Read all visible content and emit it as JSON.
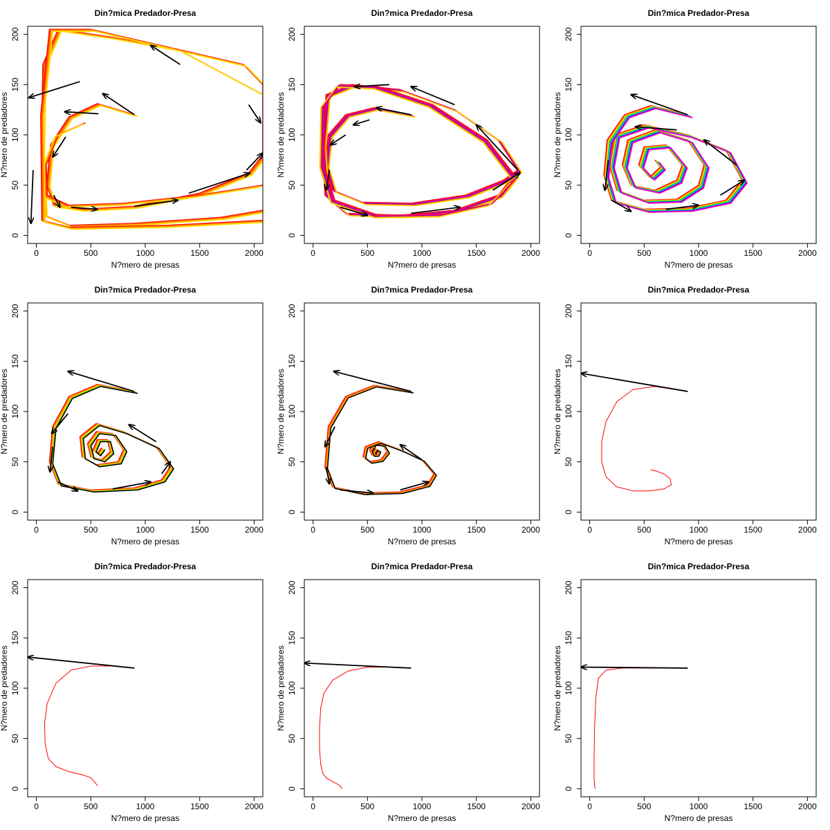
{
  "chart_data": [
    {
      "type": "line",
      "title": "Din?mica Predador-Presa",
      "xlabel": "N?mero de presas",
      "ylabel": "N?mero de predadores",
      "xlim": [
        -80,
        2080
      ],
      "ylim": [
        -8,
        208
      ],
      "xticks": [
        "0",
        "500",
        "1000",
        "1500",
        "2000"
      ],
      "yticks": [
        "0",
        "50",
        "100",
        "150",
        "200"
      ],
      "colors": [
        "#ff0000",
        "#ff4400",
        "#ff7700",
        "#ffaa00",
        "#ffdd00"
      ],
      "series": [
        {
          "x": [
            900,
            560,
            300,
            130,
            95,
            160,
            420,
            900,
            1500,
            1950,
            2080,
            2080,
            1900,
            1300,
            700,
            200,
            60,
            45,
            70,
            300,
            900,
            1700,
            2080
          ],
          "y": [
            120,
            131,
            118,
            90,
            50,
            30,
            26,
            29,
            42,
            62,
            80,
            150,
            170,
            185,
            197,
            205,
            170,
            80,
            20,
            10,
            12,
            18,
            25
          ]
        },
        {
          "x": [
            450,
            200,
            90,
            100,
            300,
            800,
            1500,
            2080
          ],
          "y": [
            112,
            100,
            70,
            40,
            30,
            32,
            40,
            50
          ]
        },
        {
          "x": [
            2080,
            1300,
            500,
            120,
            40,
            50,
            300,
            1200,
            2080
          ],
          "y": [
            140,
            185,
            205,
            205,
            120,
            15,
            8,
            10,
            15
          ]
        }
      ]
    },
    {
      "type": "line",
      "title": "Din?mica Predador-Presa",
      "xlabel": "N?mero de presas",
      "ylabel": "N?mero de predadores",
      "xlim": [
        -80,
        2080
      ],
      "ylim": [
        -8,
        208
      ],
      "xticks": [
        "0",
        "500",
        "1000",
        "1500",
        "2000"
      ],
      "yticks": [
        "0",
        "50",
        "100",
        "150",
        "200"
      ],
      "colors": [
        "#ff0000",
        "#ff0055",
        "#cc00aa",
        "#8800cc",
        "#ff7700",
        "#ffcc00"
      ],
      "series": [
        {
          "x": [
            900,
            560,
            300,
            140,
            110,
            180,
            450,
            900,
            1400,
            1750,
            1880,
            1700,
            1300,
            800,
            350,
            120,
            80,
            110,
            300,
            800,
            1300,
            1700,
            1850
          ],
          "y": [
            120,
            127,
            120,
            100,
            70,
            45,
            33,
            32,
            40,
            55,
            65,
            95,
            125,
            145,
            150,
            140,
            90,
            40,
            22,
            20,
            25,
            40,
            60
          ]
        },
        {
          "x": [
            1850,
            1600,
            1100,
            600,
            250,
            110,
            100,
            200,
            600,
            1200,
            1650,
            1850
          ],
          "y": [
            60,
            95,
            130,
            148,
            150,
            130,
            70,
            35,
            20,
            21,
            32,
            55
          ]
        }
      ]
    },
    {
      "type": "line",
      "title": "Din?mica Predador-Presa",
      "xlabel": "N?mero de presas",
      "ylabel": "N?mero de predadores",
      "xlim": [
        -80,
        2080
      ],
      "ylim": [
        -8,
        208
      ],
      "xticks": [
        "0",
        "500",
        "1000",
        "1500",
        "2000"
      ],
      "yticks": [
        "0",
        "50",
        "100",
        "150",
        "200"
      ],
      "colors": [
        "#ff0000",
        "#ff7700",
        "#ffee00",
        "#00cc00",
        "#00ccff",
        "#6600ff",
        "#ff00aa"
      ],
      "series": [
        {
          "x": [
            900,
            560,
            320,
            160,
            130,
            200,
            500,
            900,
            1250,
            1400,
            1250,
            900,
            500,
            230,
            180,
            250,
            500,
            800,
            1000,
            1050,
            900,
            600,
            350,
            300,
            380,
            600,
            800,
            850,
            700,
            500,
            450,
            550,
            650,
            600
          ],
          "y": [
            120,
            129,
            120,
            95,
            60,
            35,
            26,
            27,
            35,
            55,
            85,
            100,
            110,
            100,
            70,
            45,
            35,
            36,
            50,
            70,
            95,
            105,
            95,
            70,
            50,
            45,
            55,
            70,
            90,
            88,
            70,
            58,
            68,
            75
          ]
        }
      ]
    },
    {
      "type": "line",
      "title": "Din?mica Predador-Presa",
      "xlabel": "N?mero de presas",
      "ylabel": "N?mero de predadores",
      "xlim": [
        -80,
        2080
      ],
      "ylim": [
        -8,
        208
      ],
      "xticks": [
        "0",
        "500",
        "1000",
        "1500",
        "2000"
      ],
      "yticks": [
        "0",
        "50",
        "100",
        "150",
        "200"
      ],
      "colors": [
        "#ff0000",
        "#ff7700",
        "#ffcc00",
        "#88dd00",
        "#000000"
      ],
      "series": [
        {
          "x": [
            900,
            560,
            300,
            150,
            120,
            200,
            500,
            900,
            1150,
            1230,
            1100,
            800,
            550,
            400,
            420,
            550,
            750,
            800,
            700,
            550,
            470,
            500,
            600,
            680,
            650,
            560,
            520,
            560,
            600
          ],
          "y": [
            120,
            127,
            115,
            85,
            50,
            28,
            22,
            24,
            32,
            45,
            65,
            80,
            88,
            75,
            55,
            47,
            50,
            62,
            78,
            80,
            68,
            55,
            52,
            60,
            72,
            72,
            62,
            58,
            64
          ]
        }
      ]
    },
    {
      "type": "line",
      "title": "Din?mica Predador-Presa",
      "xlabel": "N?mero de presas",
      "ylabel": "N?mero de predadores",
      "xlim": [
        -80,
        2080
      ],
      "ylim": [
        -8,
        208
      ],
      "xticks": [
        "0",
        "500",
        "1000",
        "1500",
        "2000"
      ],
      "yticks": [
        "0",
        "50",
        "100",
        "150",
        "200"
      ],
      "colors": [
        "#ff0000",
        "#ff7700",
        "#ffaa00",
        "#000000"
      ],
      "series": [
        {
          "x": [
            900,
            560,
            300,
            140,
            110,
            180,
            450,
            800,
            1050,
            1110,
            1000,
            800,
            600,
            480,
            460,
            520,
            620,
            680,
            640,
            560,
            520,
            540,
            580,
            600,
            570,
            550,
            560
          ],
          "y": [
            120,
            126,
            115,
            85,
            45,
            25,
            19,
            20,
            27,
            38,
            52,
            62,
            70,
            65,
            55,
            50,
            52,
            60,
            67,
            68,
            62,
            57,
            57,
            61,
            63,
            60,
            59
          ]
        }
      ]
    },
    {
      "type": "line",
      "title": "Din?mica Predador-Presa",
      "xlabel": "N?mero de presas",
      "ylabel": "N?mero de predadores",
      "xlim": [
        -80,
        2080
      ],
      "ylim": [
        -8,
        208
      ],
      "xticks": [
        "0",
        "500",
        "1000",
        "1500",
        "2000"
      ],
      "yticks": [
        "0",
        "50",
        "100",
        "150",
        "200"
      ],
      "colors": [
        "#ff0000"
      ],
      "series": [
        {
          "x": [
            900,
            600,
            400,
            250,
            150,
            110,
            110,
            150,
            250,
            400,
            550,
            680,
            750,
            740,
            680,
            610,
            560
          ],
          "y": [
            120,
            125,
            122,
            110,
            90,
            70,
            50,
            35,
            25,
            21,
            21,
            23,
            27,
            33,
            38,
            41,
            42
          ]
        }
      ]
    },
    {
      "type": "line",
      "title": "Din?mica Predador-Presa",
      "xlabel": "N?mero de presas",
      "ylabel": "N?mero de predadores",
      "xlim": [
        -80,
        2080
      ],
      "ylim": [
        -8,
        208
      ],
      "xticks": [
        "0",
        "500",
        "1000",
        "1500",
        "2000"
      ],
      "yticks": [
        "0",
        "50",
        "100",
        "150",
        "200"
      ],
      "colors": [
        "#ff0000"
      ],
      "series": [
        {
          "x": [
            900,
            700,
            500,
            320,
            180,
            100,
            75,
            80,
            110,
            180,
            300,
            420,
            500,
            540,
            560
          ],
          "y": [
            120,
            122,
            122,
            118,
            105,
            85,
            65,
            45,
            30,
            22,
            17,
            14,
            11,
            6,
            3
          ]
        }
      ]
    },
    {
      "type": "line",
      "title": "Din?mica Predador-Presa",
      "xlabel": "N?mero de presas",
      "ylabel": "N?mero de predadores",
      "xlim": [
        -80,
        2080
      ],
      "ylim": [
        -8,
        208
      ],
      "xticks": [
        "0",
        "500",
        "1000",
        "1500",
        "2000"
      ],
      "yticks": [
        "0",
        "50",
        "100",
        "150",
        "200"
      ],
      "colors": [
        "#ff0000"
      ],
      "series": [
        {
          "x": [
            900,
            700,
            500,
            320,
            180,
            100,
            70,
            60,
            60,
            70,
            90,
            130,
            200,
            250,
            265
          ],
          "y": [
            120,
            121,
            121,
            117,
            108,
            95,
            80,
            60,
            40,
            25,
            15,
            10,
            6,
            3,
            0
          ]
        }
      ]
    },
    {
      "type": "line",
      "title": "Din?mica Predador-Presa",
      "xlabel": "N?mero de presas",
      "ylabel": "N?mero de predadores",
      "xlim": [
        -80,
        2080
      ],
      "ylim": [
        -8,
        208
      ],
      "xticks": [
        "0",
        "500",
        "1000",
        "1500",
        "2000"
      ],
      "yticks": [
        "0",
        "50",
        "100",
        "150",
        "200"
      ],
      "colors": [
        "#ff0000"
      ],
      "series": [
        {
          "x": [
            900,
            600,
            300,
            150,
            80,
            55,
            45,
            40,
            40,
            45,
            50
          ],
          "y": [
            120,
            120,
            120,
            118,
            110,
            90,
            60,
            30,
            10,
            3,
            0
          ]
        }
      ]
    }
  ],
  "arrows": [
    [
      [
        [
          1320,
          170
        ],
        [
          1050,
          189
        ]
      ],
      [
        [
          900,
          120
        ],
        [
          610,
          141
        ]
      ],
      [
        [
          570,
          121
        ],
        [
          260,
          123
        ]
      ],
      [
        [
          400,
          153
        ],
        [
          -70,
          137
        ]
      ],
      [
        [
          -30,
          65
        ],
        [
          -50,
          12
        ]
      ],
      [
        [
          270,
          98
        ],
        [
          150,
          78
        ]
      ],
      [
        [
          160,
          40
        ],
        [
          215,
          28
        ]
      ],
      [
        [
          320,
          28
        ],
        [
          560,
          26
        ]
      ],
      [
        [
          900,
          29
        ],
        [
          1300,
          35
        ]
      ],
      [
        [
          1400,
          42
        ],
        [
          1960,
          62
        ]
      ],
      [
        [
          1930,
          65
        ],
        [
          2080,
          82
        ]
      ],
      [
        [
          1950,
          130
        ],
        [
          2060,
          112
        ]
      ]
    ],
    [
      [
        [
          900,
          120
        ],
        [
          580,
          127
        ]
      ],
      [
        [
          520,
          115
        ],
        [
          370,
          110
        ]
      ],
      [
        [
          300,
          100
        ],
        [
          160,
          90
        ]
      ],
      [
        [
          150,
          65
        ],
        [
          120,
          45
        ]
      ],
      [
        [
          250,
          28
        ],
        [
          500,
          20
        ]
      ],
      [
        [
          900,
          22
        ],
        [
          1350,
          28
        ]
      ],
      [
        [
          1650,
          45
        ],
        [
          1900,
          62
        ]
      ],
      [
        [
          1880,
          65
        ],
        [
          1500,
          110
        ]
      ],
      [
        [
          1300,
          130
        ],
        [
          900,
          148
        ]
      ],
      [
        [
          700,
          150
        ],
        [
          380,
          148
        ]
      ]
    ],
    [
      [
        [
          900,
          120
        ],
        [
          380,
          140
        ]
      ],
      [
        [
          170,
          75
        ],
        [
          140,
          45
        ]
      ],
      [
        [
          200,
          35
        ],
        [
          380,
          24
        ]
      ],
      [
        [
          700,
          26
        ],
        [
          1000,
          30
        ]
      ],
      [
        [
          1200,
          40
        ],
        [
          1420,
          55
        ]
      ],
      [
        [
          1350,
          70
        ],
        [
          1050,
          95
        ]
      ],
      [
        [
          800,
          105
        ],
        [
          420,
          108
        ]
      ]
    ],
    [
      [
        [
          900,
          120
        ],
        [
          290,
          140
        ]
      ],
      [
        [
          290,
          98
        ],
        [
          140,
          78
        ]
      ],
      [
        [
          150,
          65
        ],
        [
          125,
          40
        ]
      ],
      [
        [
          200,
          30
        ],
        [
          380,
          21
        ]
      ],
      [
        [
          700,
          23
        ],
        [
          1050,
          30
        ]
      ],
      [
        [
          1150,
          38
        ],
        [
          1230,
          50
        ]
      ],
      [
        [
          1100,
          70
        ],
        [
          850,
          87
        ]
      ]
    ],
    [
      [
        [
          900,
          120
        ],
        [
          190,
          140
        ]
      ],
      [
        [
          200,
          85
        ],
        [
          110,
          65
        ]
      ],
      [
        [
          120,
          45
        ],
        [
          150,
          28
        ]
      ],
      [
        [
          250,
          22
        ],
        [
          550,
          19
        ]
      ],
      [
        [
          800,
          22
        ],
        [
          1060,
          30
        ]
      ],
      [
        [
          1000,
          52
        ],
        [
          800,
          67
        ]
      ]
    ],
    [
      [
        [
          900,
          120
        ],
        [
          -80,
          138
        ]
      ]
    ],
    [
      [
        [
          900,
          120
        ],
        [
          -80,
          131
        ]
      ]
    ],
    [
      [
        [
          900,
          120
        ],
        [
          -80,
          125
        ]
      ]
    ],
    [
      [
        [
          900,
          120
        ],
        [
          -80,
          121
        ]
      ]
    ]
  ]
}
